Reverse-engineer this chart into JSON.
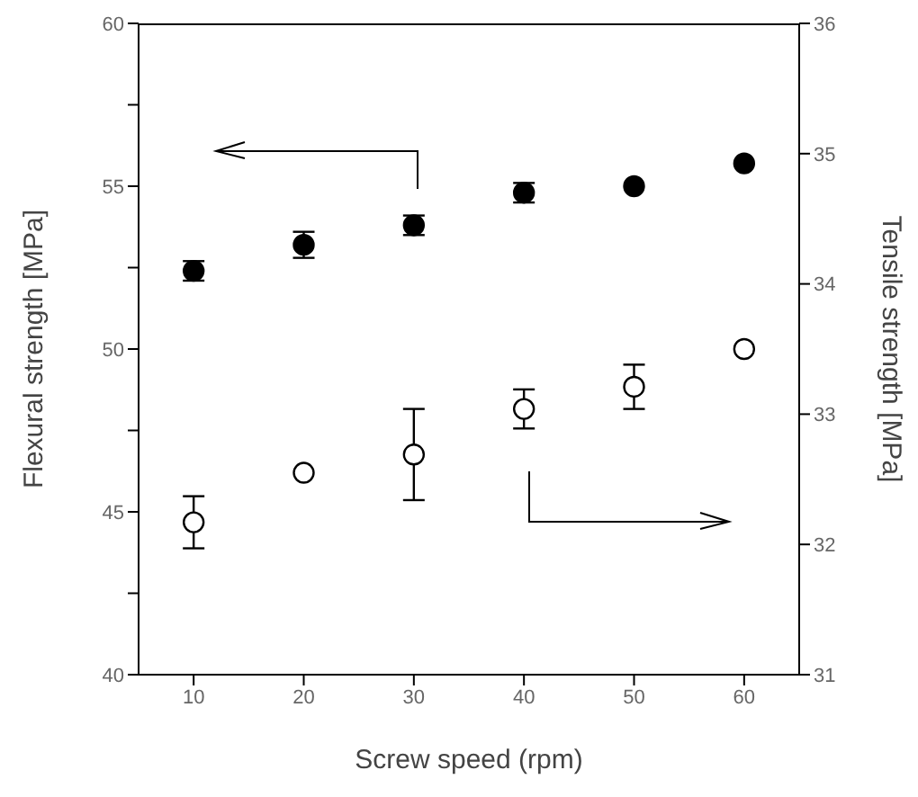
{
  "chart_data": {
    "type": "scatter",
    "xlabel": "Screw speed (rpm)",
    "ylabel": "Flexural strength [MPa]",
    "y2label": "Tensile strength [MPa]",
    "x": [
      10,
      20,
      30,
      40,
      50,
      60
    ],
    "series": [
      {
        "color": "#000000",
        "values": [
          52.4,
          53.2,
          53.8,
          54.8,
          55.0,
          55.7
        ],
        "errors": [
          0.3,
          0.4,
          0.3,
          0.3,
          null,
          null
        ]
      },
      {
        "color": "#ffffff",
        "axis": "y2",
        "values": [
          32.17,
          32.55,
          32.69,
          33.04,
          33.21,
          33.5
        ],
        "errors": [
          0.2,
          null,
          0.35,
          0.15,
          0.17,
          null
        ]
      }
    ],
    "xlim": [
      5,
      65
    ],
    "xticks": [
      10,
      20,
      30,
      40,
      50,
      60
    ],
    "ylim": [
      40,
      60
    ],
    "yticks": [
      40,
      {
        "value": 42.5,
        "label": null
      },
      45,
      {
        "value": 47.5,
        "label": null
      },
      50,
      {
        "value": 52.5,
        "label": null
      },
      55,
      {
        "value": 57.5,
        "label": null
      },
      60
    ],
    "y2lim": [
      31,
      36
    ],
    "y2ticks": [
      31,
      32,
      33,
      34,
      35,
      36
    ],
    "marker": "circle",
    "grid": false,
    "legend": false
  }
}
